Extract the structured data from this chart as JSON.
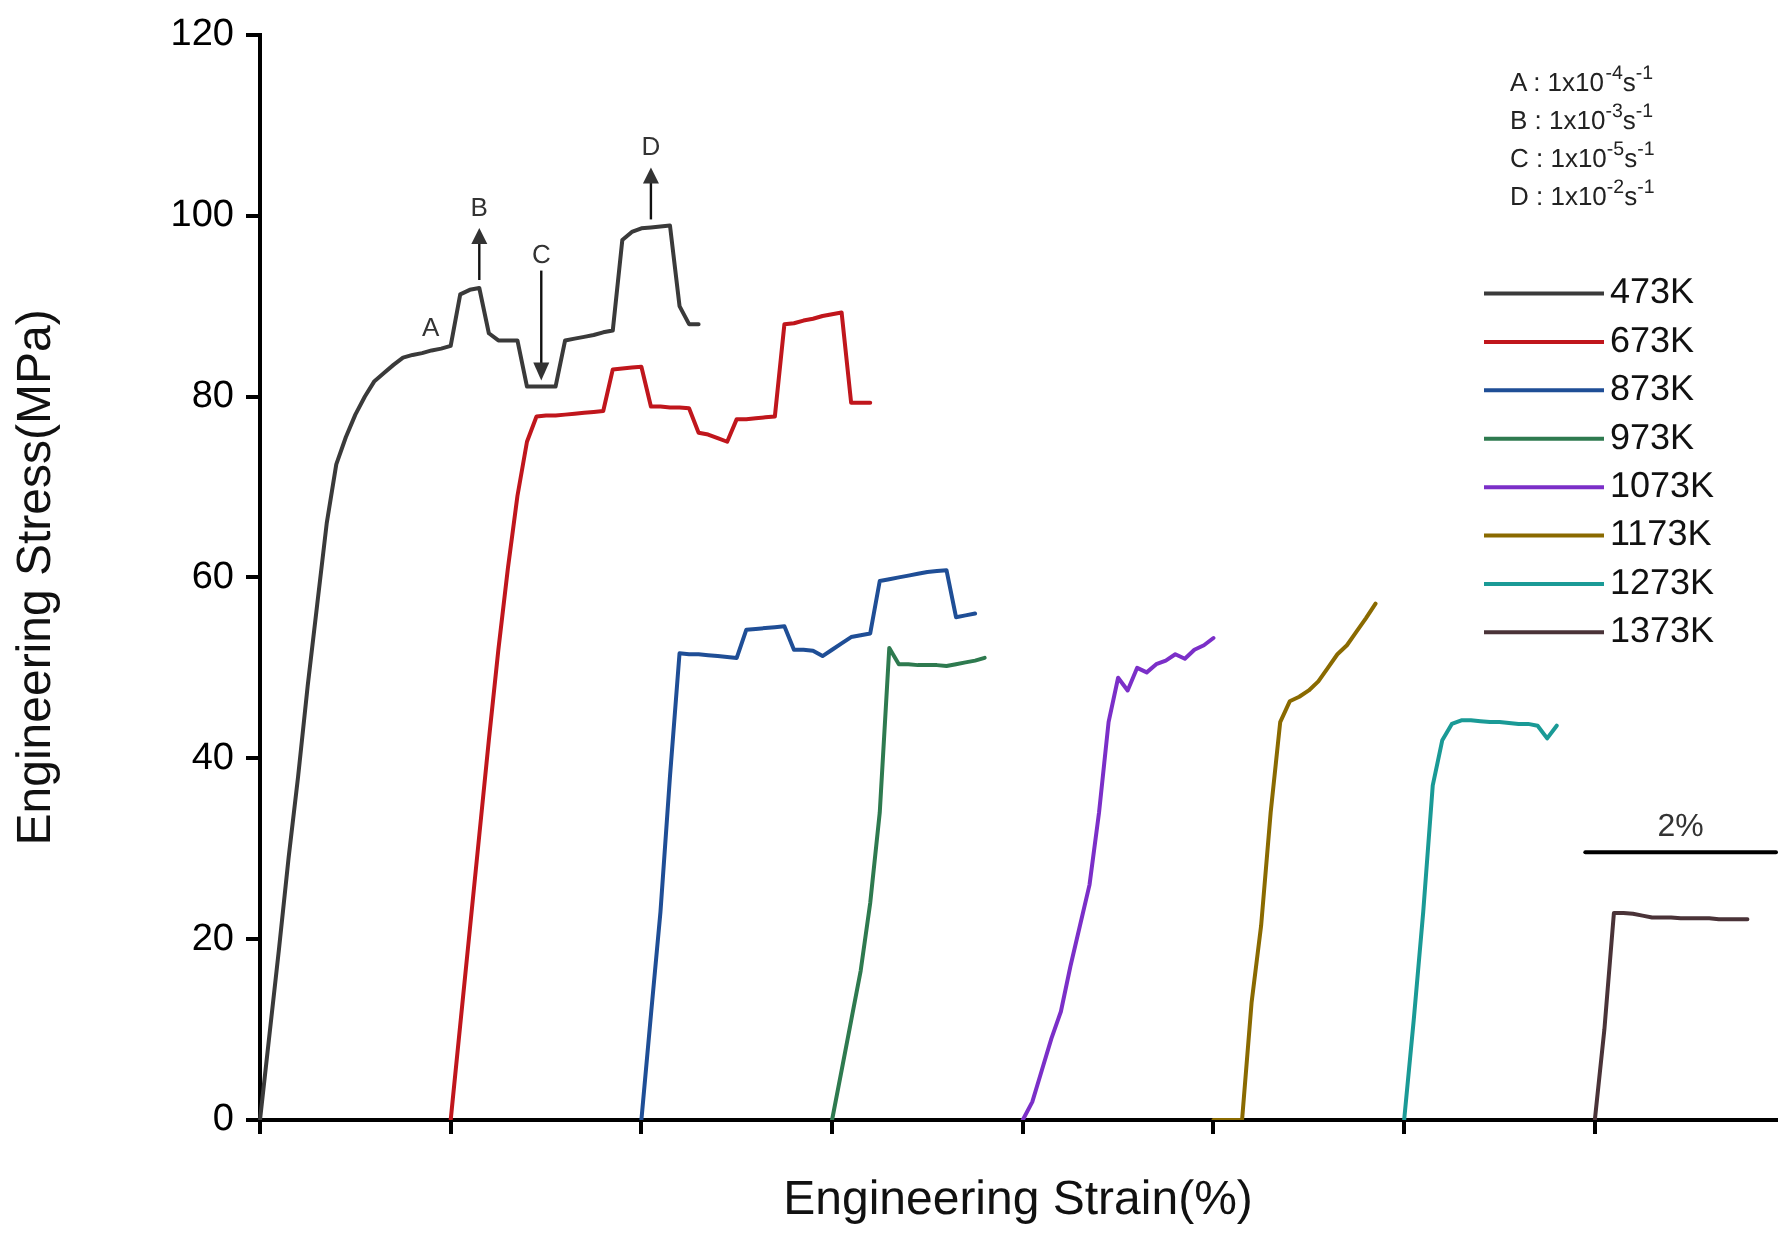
{
  "chart_data": {
    "type": "line",
    "xlabel": "Engineering Strain(%)",
    "ylabel": "Engineering Stress(MPa)",
    "categories": [
      null,
      null,
      null,
      null,
      null,
      null,
      null,
      null,
      null,
      null,
      null,
      null,
      null,
      null,
      null,
      null,
      null,
      null,
      null,
      null,
      null,
      null,
      null,
      null,
      null,
      null,
      null,
      null,
      null,
      null,
      null,
      null,
      null,
      null,
      null,
      null,
      null,
      null,
      null,
      null,
      null,
      null,
      null,
      null,
      null,
      null,
      null,
      null,
      null,
      null,
      null,
      null,
      null,
      null,
      null,
      null,
      null,
      null,
      null,
      null,
      null,
      null,
      null,
      null,
      null,
      null,
      null,
      null,
      null,
      null,
      null,
      null,
      null,
      null,
      null,
      null,
      null,
      null,
      null,
      null,
      null,
      null,
      null,
      null,
      null,
      null,
      null,
      null,
      null,
      null,
      null,
      null,
      null,
      null,
      null,
      null,
      null,
      null,
      null,
      null,
      null,
      null,
      null,
      null,
      null,
      null,
      null,
      null,
      null,
      null,
      null,
      null,
      null,
      null,
      null,
      null,
      null,
      null,
      null,
      null,
      null,
      null,
      null,
      null,
      null,
      null,
      null,
      null,
      null,
      null,
      null,
      null,
      null,
      null,
      null,
      null,
      null,
      null,
      null,
      null,
      null,
      null,
      null,
      null,
      null,
      null,
      null,
      null,
      null,
      null,
      null,
      null,
      null,
      null,
      null,
      null,
      null,
      null,
      null,
      null
    ],
    "ylim": [
      0,
      120
    ],
    "yticks": [
      0,
      20,
      40,
      60,
      80,
      100,
      120
    ],
    "grid": false,
    "legend": "right",
    "marker": "none",
    "line_style": "solid",
    "series": [
      {
        "name": "473K",
        "color": "#3a3a3a",
        "values": [
          0,
          9.5,
          19,
          29,
          38,
          48,
          57,
          66,
          72.5,
          75.5,
          78,
          80,
          81.7,
          82.6,
          83.5,
          84.3,
          84.6,
          84.8,
          85.1,
          85.3,
          85.6,
          91.3,
          91.8,
          92,
          87,
          86.2,
          86.2,
          86.2,
          81.1,
          81.1,
          81.1,
          81.1,
          86.2,
          86.4,
          86.6,
          86.8,
          87.1,
          87.3,
          97.3,
          98.2,
          98.6,
          98.7,
          98.8,
          98.9,
          90,
          88,
          88,
          null,
          null,
          null,
          null,
          null,
          null,
          null,
          null,
          null,
          null,
          null,
          null,
          null,
          null,
          null,
          null,
          null,
          null,
          null,
          null,
          null,
          null,
          null,
          null,
          null,
          null,
          null,
          null,
          null,
          null,
          null,
          null,
          null,
          null,
          null,
          null,
          null,
          null,
          null,
          null,
          null,
          null,
          null,
          null,
          null,
          null,
          null,
          null,
          null,
          null,
          null,
          null,
          null,
          null,
          null,
          null,
          null,
          null,
          null,
          null,
          null,
          null,
          null,
          null,
          null,
          null,
          null,
          null,
          null,
          null,
          null,
          null,
          null,
          null,
          null,
          null,
          null,
          null,
          null,
          null,
          null,
          null,
          null,
          null,
          null,
          null,
          null,
          null,
          null,
          null,
          null,
          null,
          null,
          null,
          null,
          null,
          null,
          null,
          null,
          null,
          null,
          null,
          null,
          null,
          null,
          null,
          null,
          null,
          null,
          null,
          null,
          null,
          null
        ]
      },
      {
        "name": "673K",
        "color": "#c0161c",
        "values": [
          null,
          null,
          null,
          null,
          null,
          null,
          null,
          null,
          null,
          null,
          null,
          null,
          null,
          null,
          null,
          null,
          null,
          null,
          null,
          null,
          0,
          10.5,
          21,
          31.5,
          42,
          52,
          61,
          69,
          75,
          77.8,
          77.9,
          77.9,
          78,
          78.1,
          78.2,
          78.3,
          78.4,
          83,
          83.1,
          83.2,
          83.3,
          78.9,
          78.9,
          78.8,
          78.8,
          78.7,
          76,
          75.8,
          75.4,
          75,
          77.5,
          77.5,
          77.6,
          77.7,
          77.8,
          88,
          88.1,
          88.4,
          88.6,
          88.9,
          89.1,
          89.3,
          79.3,
          79.3,
          79.3,
          null,
          null,
          null,
          null,
          null,
          null,
          null,
          null,
          null,
          null,
          null,
          null,
          null,
          null,
          null,
          null,
          null,
          null,
          null,
          null,
          null,
          null,
          null,
          null,
          null,
          null,
          null,
          null,
          null,
          null,
          null,
          null,
          null,
          null,
          null,
          null,
          null,
          null,
          null,
          null,
          null,
          null,
          null,
          null,
          null,
          null,
          null,
          null,
          null,
          null,
          null,
          null,
          null,
          null,
          null,
          null,
          null,
          null,
          null,
          null,
          null,
          null,
          null,
          null,
          null,
          null,
          null,
          null,
          null,
          null,
          null,
          null,
          null,
          null,
          null,
          null,
          null,
          null,
          null,
          null,
          null,
          null,
          null,
          null,
          null,
          null,
          null,
          null,
          null,
          null,
          null,
          null,
          null,
          null,
          null
        ]
      },
      {
        "name": "873K",
        "color": "#1f4e96",
        "values": [
          null,
          null,
          null,
          null,
          null,
          null,
          null,
          null,
          null,
          null,
          null,
          null,
          null,
          null,
          null,
          null,
          null,
          null,
          null,
          null,
          null,
          null,
          null,
          null,
          null,
          null,
          null,
          null,
          null,
          null,
          null,
          null,
          null,
          null,
          null,
          null,
          null,
          null,
          null,
          null,
          0,
          11.6,
          23,
          38,
          51.6,
          51.5,
          51.5,
          51.4,
          51.3,
          51.2,
          51.1,
          54.2,
          54.3,
          54.4,
          54.5,
          54.6,
          52,
          52,
          51.9,
          51.3,
          52,
          52.7,
          53.4,
          53.6,
          53.8,
          59.6,
          59.8,
          60,
          60.2,
          60.4,
          60.6,
          60.7,
          60.8,
          55.6,
          55.8,
          56,
          null,
          null,
          null,
          null,
          null,
          null,
          null,
          null,
          null,
          null,
          null,
          null,
          null,
          null,
          null,
          null,
          null,
          null,
          null,
          null,
          null,
          null,
          null,
          null,
          null,
          null,
          null,
          null,
          null,
          null,
          null,
          null,
          null,
          null,
          null,
          null,
          null,
          null,
          null,
          null,
          null,
          null,
          null,
          null,
          null,
          null,
          null,
          null,
          null,
          null,
          null,
          null,
          null,
          null,
          null,
          null,
          null,
          null,
          null,
          null,
          null,
          null,
          null,
          null,
          null,
          null,
          null,
          null,
          null,
          null,
          null,
          null,
          null,
          null,
          null,
          null,
          null,
          null,
          null,
          null,
          null,
          null,
          null,
          null
        ]
      },
      {
        "name": "973K",
        "color": "#2e7a4f",
        "values": [
          null,
          null,
          null,
          null,
          null,
          null,
          null,
          null,
          null,
          null,
          null,
          null,
          null,
          null,
          null,
          null,
          null,
          null,
          null,
          null,
          null,
          null,
          null,
          null,
          null,
          null,
          null,
          null,
          null,
          null,
          null,
          null,
          null,
          null,
          null,
          null,
          null,
          null,
          null,
          null,
          null,
          null,
          null,
          null,
          null,
          null,
          null,
          null,
          null,
          null,
          null,
          null,
          null,
          null,
          null,
          null,
          null,
          null,
          null,
          null,
          0,
          5.5,
          11,
          16.5,
          24,
          34,
          52.2,
          50.4,
          50.4,
          50.3,
          50.3,
          50.3,
          50.2,
          50.4,
          50.6,
          50.8,
          51.1,
          null,
          null,
          null,
          null,
          null,
          null,
          null,
          null,
          null,
          null,
          null,
          null,
          null,
          null,
          null,
          null,
          null,
          null,
          null,
          null,
          null,
          null,
          null,
          null,
          null,
          null,
          null,
          null,
          null,
          null,
          null,
          null,
          null,
          null,
          null,
          null,
          null,
          null,
          null,
          null,
          null,
          null,
          null,
          null,
          null,
          null,
          null,
          null,
          null,
          null,
          null,
          null,
          null,
          null,
          null,
          null,
          null,
          null,
          null,
          null,
          null,
          null,
          null,
          null,
          null,
          null,
          null,
          null,
          null,
          null,
          null,
          null,
          null,
          null,
          null,
          null,
          null,
          null,
          null,
          null,
          null,
          null,
          null
        ]
      },
      {
        "name": "1073K",
        "color": "#7b2fc8",
        "values": [
          null,
          null,
          null,
          null,
          null,
          null,
          null,
          null,
          null,
          null,
          null,
          null,
          null,
          null,
          null,
          null,
          null,
          null,
          null,
          null,
          null,
          null,
          null,
          null,
          null,
          null,
          null,
          null,
          null,
          null,
          null,
          null,
          null,
          null,
          null,
          null,
          null,
          null,
          null,
          null,
          null,
          null,
          null,
          null,
          null,
          null,
          null,
          null,
          null,
          null,
          null,
          null,
          null,
          null,
          null,
          null,
          null,
          null,
          null,
          null,
          null,
          null,
          null,
          null,
          null,
          null,
          null,
          null,
          null,
          null,
          null,
          null,
          null,
          null,
          null,
          null,
          null,
          null,
          null,
          null,
          0,
          2,
          5.5,
          9,
          12,
          17,
          21.5,
          26,
          34,
          44,
          48.9,
          47.5,
          50,
          49.5,
          50.4,
          50.8,
          51.5,
          51,
          52,
          52.5,
          53.3,
          null,
          null,
          null,
          null,
          null,
          null,
          null,
          null,
          null,
          null,
          null,
          null,
          null,
          null,
          null,
          null,
          null,
          null,
          null,
          null,
          null,
          null,
          null,
          null,
          null,
          null,
          null,
          null,
          null,
          null,
          null,
          null,
          null,
          null,
          null,
          null,
          null,
          null,
          null,
          null,
          null,
          null,
          null,
          null,
          null,
          null,
          null,
          null,
          null,
          null,
          null,
          null,
          null,
          null,
          null,
          null,
          null,
          null,
          null
        ]
      },
      {
        "name": "1173K",
        "color": "#8a6a00",
        "values": [
          null,
          null,
          null,
          null,
          null,
          null,
          null,
          null,
          null,
          null,
          null,
          null,
          null,
          null,
          null,
          null,
          null,
          null,
          null,
          null,
          null,
          null,
          null,
          null,
          null,
          null,
          null,
          null,
          null,
          null,
          null,
          null,
          null,
          null,
          null,
          null,
          null,
          null,
          null,
          null,
          null,
          null,
          null,
          null,
          null,
          null,
          null,
          null,
          null,
          null,
          null,
          null,
          null,
          null,
          null,
          null,
          null,
          null,
          null,
          null,
          null,
          null,
          null,
          null,
          null,
          null,
          null,
          null,
          null,
          null,
          null,
          null,
          null,
          null,
          null,
          null,
          null,
          null,
          null,
          null,
          null,
          null,
          null,
          null,
          null,
          null,
          null,
          null,
          null,
          null,
          null,
          null,
          null,
          null,
          null,
          null,
          null,
          null,
          null,
          null,
          0,
          0,
          0,
          0,
          13,
          21.5,
          34,
          44,
          46.3,
          46.8,
          47.5,
          48.5,
          50,
          51.5,
          52.5,
          54,
          55.5,
          57.1,
          null,
          null,
          null,
          null,
          null,
          null,
          null,
          null,
          null,
          null,
          null,
          null,
          null,
          null,
          null,
          null,
          null,
          null,
          null,
          null,
          null,
          null,
          null,
          null,
          null,
          null,
          null,
          null,
          null,
          null,
          null,
          null,
          null,
          null,
          null,
          null,
          null,
          null,
          null,
          null,
          null,
          null
        ]
      },
      {
        "name": "1273K",
        "color": "#1a9a96",
        "values": [
          null,
          null,
          null,
          null,
          null,
          null,
          null,
          null,
          null,
          null,
          null,
          null,
          null,
          null,
          null,
          null,
          null,
          null,
          null,
          null,
          null,
          null,
          null,
          null,
          null,
          null,
          null,
          null,
          null,
          null,
          null,
          null,
          null,
          null,
          null,
          null,
          null,
          null,
          null,
          null,
          null,
          null,
          null,
          null,
          null,
          null,
          null,
          null,
          null,
          null,
          null,
          null,
          null,
          null,
          null,
          null,
          null,
          null,
          null,
          null,
          null,
          null,
          null,
          null,
          null,
          null,
          null,
          null,
          null,
          null,
          null,
          null,
          null,
          null,
          null,
          null,
          null,
          null,
          null,
          null,
          null,
          null,
          null,
          null,
          null,
          null,
          null,
          null,
          null,
          null,
          null,
          null,
          null,
          null,
          null,
          null,
          null,
          null,
          null,
          null,
          null,
          null,
          null,
          null,
          null,
          null,
          null,
          null,
          null,
          null,
          null,
          null,
          null,
          null,
          null,
          null,
          null,
          null,
          null,
          null,
          0,
          11,
          23,
          37,
          42,
          43.8,
          44.2,
          44.2,
          44.1,
          44,
          44,
          43.9,
          43.8,
          43.8,
          43.6,
          42.2,
          43.6,
          null,
          null,
          null,
          null,
          null,
          null,
          null,
          null,
          null,
          null,
          null,
          null,
          null,
          null,
          null,
          null,
          null,
          null,
          null,
          null,
          null,
          null,
          null
        ]
      },
      {
        "name": "1373K",
        "color": "#4a3338",
        "values": [
          null,
          null,
          null,
          null,
          null,
          null,
          null,
          null,
          null,
          null,
          null,
          null,
          null,
          null,
          null,
          null,
          null,
          null,
          null,
          null,
          null,
          null,
          null,
          null,
          null,
          null,
          null,
          null,
          null,
          null,
          null,
          null,
          null,
          null,
          null,
          null,
          null,
          null,
          null,
          null,
          null,
          null,
          null,
          null,
          null,
          null,
          null,
          null,
          null,
          null,
          null,
          null,
          null,
          null,
          null,
          null,
          null,
          null,
          null,
          null,
          null,
          null,
          null,
          null,
          null,
          null,
          null,
          null,
          null,
          null,
          null,
          null,
          null,
          null,
          null,
          null,
          null,
          null,
          null,
          null,
          null,
          null,
          null,
          null,
          null,
          null,
          null,
          null,
          null,
          null,
          null,
          null,
          null,
          null,
          null,
          null,
          null,
          null,
          null,
          null,
          null,
          null,
          null,
          null,
          null,
          null,
          null,
          null,
          null,
          null,
          null,
          null,
          null,
          null,
          null,
          null,
          null,
          null,
          null,
          null,
          null,
          null,
          null,
          null,
          null,
          null,
          null,
          null,
          null,
          null,
          null,
          null,
          null,
          null,
          null,
          null,
          null,
          null,
          null,
          null,
          0,
          10,
          22.9,
          22.9,
          22.8,
          22.6,
          22.4,
          22.4,
          22.4,
          22.3,
          22.3,
          22.3,
          22.3,
          22.2,
          22.2,
          22.2,
          22.2,
          null,
          null,
          null
        ]
      },
      {
        "color": "#000000",
        "values": [
          null,
          null,
          null,
          null,
          null,
          null,
          null,
          null,
          null,
          null,
          null,
          null,
          null,
          null,
          null,
          null,
          null,
          null,
          null,
          null,
          null,
          null,
          null,
          null,
          null,
          null,
          null,
          null,
          null,
          null,
          null,
          null,
          null,
          null,
          null,
          null,
          null,
          null,
          null,
          null,
          null,
          null,
          null,
          null,
          null,
          null,
          null,
          null,
          null,
          null,
          null,
          null,
          null,
          null,
          null,
          null,
          null,
          null,
          null,
          null,
          null,
          null,
          null,
          null,
          null,
          null,
          null,
          null,
          null,
          null,
          null,
          null,
          null,
          null,
          null,
          null,
          null,
          null,
          null,
          null,
          null,
          null,
          null,
          null,
          null,
          null,
          null,
          null,
          null,
          null,
          null,
          null,
          null,
          null,
          null,
          null,
          null,
          null,
          null,
          null,
          null,
          null,
          null,
          null,
          null,
          null,
          null,
          null,
          null,
          null,
          null,
          null,
          null,
          null,
          null,
          null,
          null,
          null,
          null,
          null,
          null,
          null,
          null,
          null,
          null,
          null,
          null,
          null,
          null,
          null,
          null,
          null,
          null,
          null,
          null,
          null,
          null,
          null,
          null,
          29.6,
          29.6,
          29.6,
          29.6,
          29.6,
          29.6,
          29.6,
          29.6,
          29.6,
          29.6,
          29.6,
          29.6,
          29.6,
          29.6,
          29.6,
          29.6,
          29.6,
          29.6,
          29.6,
          29.6,
          29.6
        ]
      }
    ],
    "annotations": [
      "A : 1x10$^{-4}$s$^{-1}$",
      "B : 1x10$^{-3}$s$^{-1}$",
      "C : 1x10$^{-5}$s$^{-1}$",
      "D : 1x10$^{-2}$s$^{-1}$",
      {
        "text": "A",
        "y": 85.6
      },
      {
        "text": "B",
        "y": 92
      },
      {
        "text": "C",
        "y": 81.1
      },
      {
        "text": "D",
        "y": 98.7
      },
      {
        "text": "2%",
        "y": 29.6
      }
    ]
  }
}
